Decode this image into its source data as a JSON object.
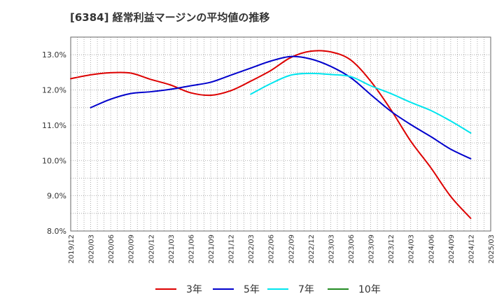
{
  "chart_data": {
    "type": "line",
    "title": "[6384]  経常利益マージンの平均値の推移",
    "xlabel": "",
    "ylabel": "",
    "x_ticks": [
      "2019/12",
      "2020/03",
      "2020/06",
      "2020/09",
      "2020/12",
      "2021/03",
      "2021/06",
      "2021/09",
      "2021/12",
      "2022/03",
      "2022/06",
      "2022/09",
      "2022/12",
      "2023/03",
      "2023/06",
      "2023/09",
      "2023/12",
      "2024/03",
      "2024/06",
      "2024/09",
      "2024/12",
      "2025/03"
    ],
    "y_ticks": [
      "8.0%",
      "9.0%",
      "10.0%",
      "11.0%",
      "12.0%",
      "13.0%"
    ],
    "ylim": [
      8.0,
      13.5
    ],
    "grid": true,
    "legend_position": "bottom",
    "series": [
      {
        "name": "3年",
        "color": "#dd0000",
        "x": [
          "2019/12",
          "2020/03",
          "2020/06",
          "2020/09",
          "2020/12",
          "2021/03",
          "2021/06",
          "2021/09",
          "2021/12",
          "2022/03",
          "2022/06",
          "2022/09",
          "2022/12",
          "2023/03",
          "2023/06",
          "2023/09",
          "2023/12",
          "2024/03",
          "2024/06",
          "2024/09",
          "2024/12"
        ],
        "values": [
          12.32,
          12.43,
          12.49,
          12.48,
          12.3,
          12.14,
          11.92,
          11.85,
          11.98,
          12.25,
          12.55,
          12.92,
          13.1,
          13.08,
          12.85,
          12.25,
          11.45,
          10.55,
          9.8,
          8.98,
          8.36
        ]
      },
      {
        "name": "5年",
        "color": "#0000cc",
        "x": [
          "2020/03",
          "2020/06",
          "2020/09",
          "2020/12",
          "2021/03",
          "2021/06",
          "2021/09",
          "2021/12",
          "2022/03",
          "2022/06",
          "2022/09",
          "2022/12",
          "2023/03",
          "2023/06",
          "2023/09",
          "2023/12",
          "2024/03",
          "2024/06",
          "2024/09",
          "2024/12"
        ],
        "values": [
          11.5,
          11.74,
          11.9,
          11.95,
          12.02,
          12.12,
          12.22,
          12.42,
          12.62,
          12.82,
          12.95,
          12.88,
          12.67,
          12.35,
          11.87,
          11.4,
          11.02,
          10.68,
          10.32,
          10.05
        ]
      },
      {
        "name": "7年",
        "color": "#00e5ee",
        "x": [
          "2022/03",
          "2022/06",
          "2022/09",
          "2022/12",
          "2023/03",
          "2023/06",
          "2023/09",
          "2023/12",
          "2024/03",
          "2024/06",
          "2024/09",
          "2024/12"
        ],
        "values": [
          11.88,
          12.18,
          12.42,
          12.47,
          12.44,
          12.38,
          12.12,
          11.9,
          11.65,
          11.42,
          11.12,
          10.78
        ]
      },
      {
        "name": "10年",
        "color": "#228b22",
        "x": [],
        "values": []
      }
    ]
  }
}
